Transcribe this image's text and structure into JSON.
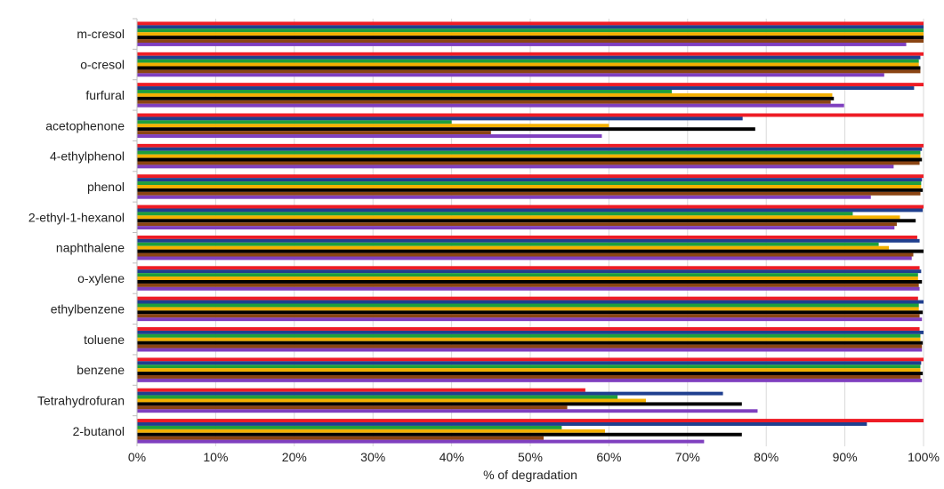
{
  "chart_data": {
    "type": "bar",
    "orientation": "horizontal",
    "xlabel": "% of degradation",
    "ylabel": "",
    "xlim": [
      0,
      100
    ],
    "x_ticks": [
      "0%",
      "10%",
      "20%",
      "30%",
      "40%",
      "50%",
      "60%",
      "70%",
      "80%",
      "90%",
      "100%"
    ],
    "grid": "vertical",
    "legend": "none",
    "categories": [
      "m-cresol",
      "o-cresol",
      "furfural",
      "acetophenone",
      "4-ethylphenol",
      "phenol",
      "2-ethyl-1-hexanol",
      "naphthalene",
      "o-xylene",
      "ethylbenzene",
      "toluene",
      "benzene",
      "Tetrahydrofuran",
      "2-butanol"
    ],
    "series": [
      {
        "color": "#ee1c25",
        "values": [
          100,
          100,
          100,
          100,
          100,
          100,
          100,
          99.2,
          99.5,
          99.3,
          99.5,
          100,
          57,
          100
        ]
      },
      {
        "color": "#1f3f8f",
        "values": [
          100,
          99.6,
          98.8,
          77,
          99.8,
          99.8,
          99.9,
          99.5,
          99.7,
          100,
          100,
          99.7,
          74.5,
          92.8
        ]
      },
      {
        "color": "#1e9f3c",
        "values": [
          100,
          99.4,
          68,
          40,
          99.6,
          99.7,
          91,
          94.3,
          99.3,
          99.4,
          99.6,
          99.6,
          61.1,
          54
        ]
      },
      {
        "color": "#f4b000",
        "values": [
          100,
          99.4,
          88.4,
          60,
          99.6,
          99.7,
          97,
          95.6,
          99.3,
          99.4,
          99.6,
          99.6,
          64.7,
          59.5
        ]
      },
      {
        "color": "#000000",
        "values": [
          100,
          99.6,
          88.6,
          78.6,
          99.8,
          99.9,
          99,
          100,
          99.8,
          99.9,
          99.9,
          99.9,
          76.9,
          76.9
        ]
      },
      {
        "color": "#8b4513",
        "values": [
          100,
          99.6,
          88.2,
          45,
          99.5,
          99.6,
          96.6,
          98.7,
          99.4,
          99.5,
          99.8,
          99.6,
          54.7,
          51.7
        ]
      },
      {
        "color": "#7f3fbf",
        "values": [
          97.8,
          95,
          89.9,
          59.1,
          96.2,
          93.3,
          96.3,
          98.5,
          99.5,
          99.8,
          99.8,
          99.8,
          78.9,
          72.1
        ]
      }
    ]
  }
}
